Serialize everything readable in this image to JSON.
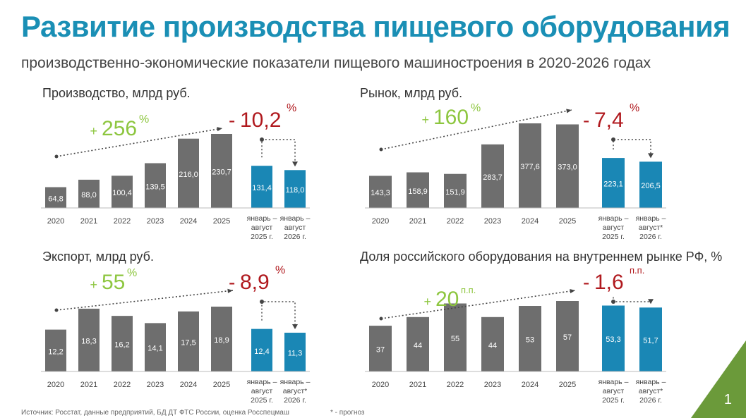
{
  "title": "Развитие производства пищевого оборудования",
  "subtitle": "производственно-экономические показатели пищевого машиностроения в 2020-2026 годах",
  "footer": {
    "source": "Источник: Росстат, данные предприятий, БД ДТ ФТС России, оценка Росспецмаш",
    "note": "* - прогноз"
  },
  "page_number": "1",
  "colors": {
    "accent": "#1a8fb5",
    "bar_gray": "#6e6e6e",
    "bar_blue": "#1a87b5",
    "growth": "#8dc63f",
    "decline": "#b0191e"
  },
  "chart_data": [
    {
      "type": "bar",
      "title": "Производство, млрд руб.",
      "categories": [
        "2020",
        "2021",
        "2022",
        "2023",
        "2024",
        "2025",
        "январь – август 2025 г.",
        "январь – август 2026 г."
      ],
      "values": [
        64.8,
        88.0,
        100.4,
        139.5,
        216.0,
        230.7,
        131.4,
        118.0
      ],
      "value_labels": [
        "64,8",
        "88,0",
        "100,4",
        "139,5",
        "216,0",
        "230,7",
        "131,4",
        "118,0"
      ],
      "growth": {
        "sign": "+",
        "value": "256",
        "unit": "%"
      },
      "decline": {
        "sign": "-",
        "value": "10,2",
        "unit": "%"
      }
    },
    {
      "type": "bar",
      "title": "Рынок, млрд руб.",
      "categories": [
        "2020",
        "2021",
        "2022",
        "2023",
        "2024",
        "2025",
        "январь – август 2025 г.",
        "январь – август* 2026 г."
      ],
      "values": [
        143.3,
        158.9,
        151.9,
        283.7,
        377.6,
        373.0,
        223.1,
        206.5
      ],
      "value_labels": [
        "143,3",
        "158,9",
        "151,9",
        "283,7",
        "377,6",
        "373,0",
        "223,1",
        "206,5"
      ],
      "growth": {
        "sign": "+",
        "value": "160",
        "unit": "%"
      },
      "decline": {
        "sign": "-",
        "value": "7,4",
        "unit": "%"
      }
    },
    {
      "type": "bar",
      "title": "Экспорт, млрд руб.",
      "categories": [
        "2020",
        "2021",
        "2022",
        "2023",
        "2024",
        "2025",
        "январь – август 2025 г.",
        "январь – август* 2026 г."
      ],
      "values": [
        12.2,
        18.3,
        16.2,
        14.1,
        17.5,
        18.9,
        12.4,
        11.3
      ],
      "value_labels": [
        "12,2",
        "18,3",
        "16,2",
        "14,1",
        "17,5",
        "18,9",
        "12,4",
        "11,3"
      ],
      "growth": {
        "sign": "+",
        "value": "55",
        "unit": "%"
      },
      "decline": {
        "sign": "-",
        "value": "8,9",
        "unit": "%"
      }
    },
    {
      "type": "bar",
      "title": "Доля российского оборудования на внутреннем рынке РФ, %",
      "categories": [
        "2020",
        "2021",
        "2022",
        "2023",
        "2024",
        "2025",
        "январь – август 2025 г.",
        "январь – август* 2026 г."
      ],
      "values": [
        37,
        44,
        55,
        44,
        53,
        57,
        53.3,
        51.7
      ],
      "value_labels": [
        "37",
        "44",
        "55",
        "44",
        "53",
        "57",
        "53,3",
        "51,7"
      ],
      "growth": {
        "sign": "+",
        "value": "20",
        "unit": "п.п."
      },
      "decline": {
        "sign": "-",
        "value": "1,6",
        "unit": "п.п."
      }
    }
  ]
}
